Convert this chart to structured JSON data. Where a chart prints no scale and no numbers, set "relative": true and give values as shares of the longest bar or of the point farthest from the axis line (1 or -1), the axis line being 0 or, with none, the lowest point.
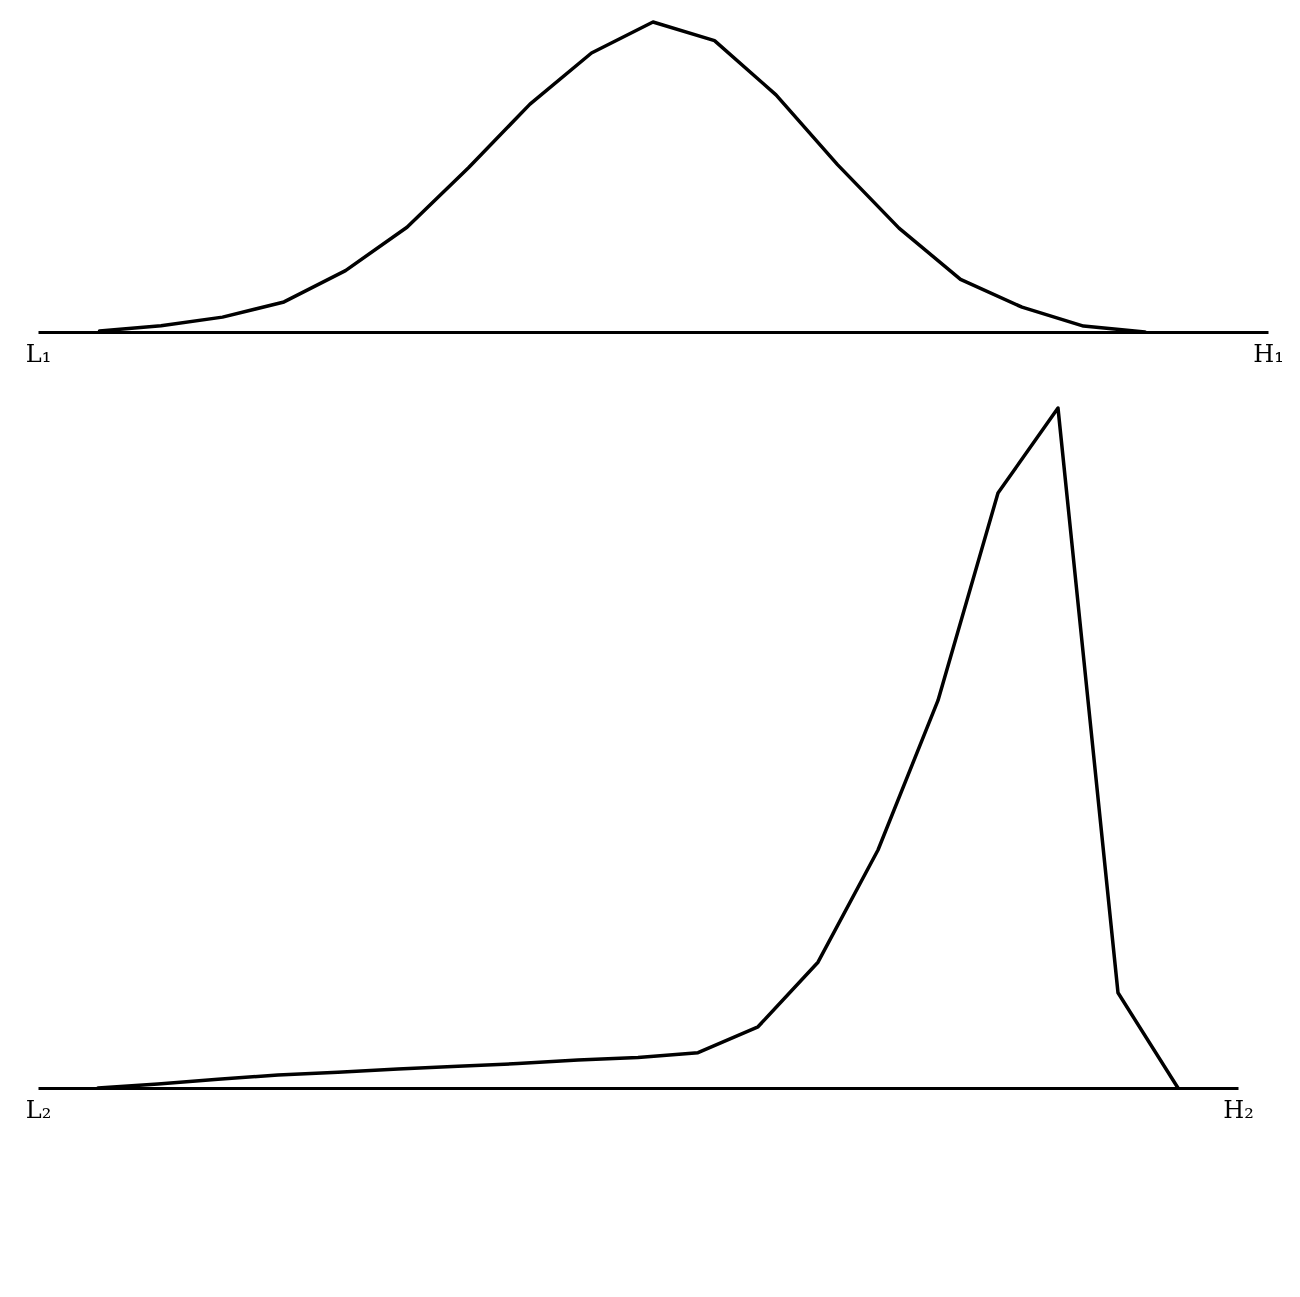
{
  "chart_data": [
    {
      "type": "line",
      "relative": true,
      "grid": false,
      "categories": [
        "L₁",
        null,
        null,
        null,
        null,
        null,
        null,
        null,
        null,
        null,
        null,
        null,
        null,
        null,
        null,
        null,
        null,
        null,
        null,
        null,
        "H₁"
      ],
      "series": [
        {
          "color": "#000000",
          "values": [
            null,
            0.003,
            0.02,
            0.048,
            0.097,
            0.198,
            0.338,
            0.53,
            0.735,
            0.9,
            1,
            0.94,
            0.765,
            0.54,
            0.335,
            0.17,
            0.08,
            0.019,
            0,
            null,
            null
          ]
        }
      ]
    },
    {
      "type": "line",
      "relative": true,
      "grid": false,
      "categories": [
        "L₂",
        null,
        null,
        null,
        null,
        null,
        null,
        null,
        null,
        null,
        null,
        null,
        null,
        null,
        null,
        null,
        null,
        null,
        null,
        null,
        "H₂"
      ],
      "series": [
        {
          "color": "#000000",
          "values": [
            null,
            0,
            0.006,
            0.013,
            0.019,
            0.023,
            0.028,
            0.032,
            0.036,
            0.041,
            0.045,
            0.052,
            0.09,
            0.185,
            0.35,
            0.57,
            0.875,
            1,
            0.14,
            0,
            null
          ]
        }
      ]
    }
  ]
}
